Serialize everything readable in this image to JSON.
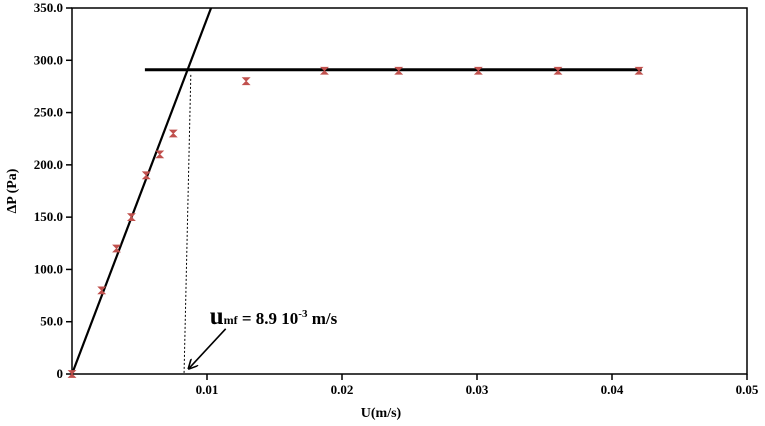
{
  "chart_data": {
    "type": "scatter",
    "title": "",
    "xlabel": "U(m/s)",
    "ylabel": "ΔP (Pa)",
    "xlim": [
      0,
      0.05
    ],
    "ylim": [
      0,
      350
    ],
    "grid": false,
    "legend": "none",
    "marker_color": "#c0504d",
    "x_ticks": [
      {
        "value": 0.01,
        "label": "0.01"
      },
      {
        "value": 0.02,
        "label": "0.02"
      },
      {
        "value": 0.03,
        "label": "0.03"
      },
      {
        "value": 0.04,
        "label": "0.04"
      },
      {
        "value": 0.05,
        "label": "0.05"
      }
    ],
    "y_ticks": [
      {
        "value": 0,
        "label": "0"
      },
      {
        "value": 50,
        "label": "50.0"
      },
      {
        "value": 100,
        "label": "100.0"
      },
      {
        "value": 150,
        "label": "150.0"
      },
      {
        "value": 200,
        "label": "200.0"
      },
      {
        "value": 250,
        "label": "250.0"
      },
      {
        "value": 300,
        "label": "300.0"
      },
      {
        "value": 350,
        "label": "350.0"
      }
    ],
    "series": [
      {
        "x": [
          0.0,
          0.0022,
          0.0033,
          0.0044,
          0.0055,
          0.0065,
          0.0075,
          0.0129,
          0.0187,
          0.0242,
          0.0301,
          0.036,
          0.042
        ],
        "y": [
          0,
          80,
          120,
          150,
          190,
          210,
          230,
          280,
          290,
          290,
          290,
          290,
          290
        ]
      }
    ],
    "fit_lines": [
      {
        "name": "rising-fit",
        "x": [
          0.0,
          0.0103
        ],
        "y": [
          0,
          350
        ]
      },
      {
        "name": "plateau-fit",
        "x": [
          0.0054,
          0.0422
        ],
        "y": [
          291,
          291
        ]
      }
    ],
    "umf_guide": {
      "x_top": 0.0088,
      "y_top": 286,
      "x_bottom": 0.0083,
      "y_bottom": 0
    },
    "annotation": {
      "symbol": "u",
      "subscript": "mf",
      "text": " = 8.9 10",
      "superscript": "-3",
      "unit": " m/s",
      "x": 0.0102,
      "y": 48,
      "arrow_to": {
        "x": 0.0084,
        "y": 2
      }
    }
  }
}
